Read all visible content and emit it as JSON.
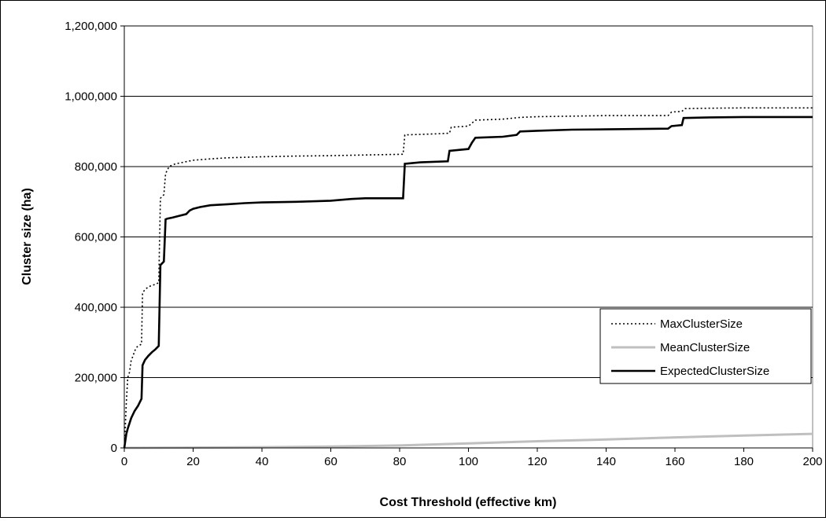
{
  "chart_data": {
    "type": "line",
    "title": "",
    "xlabel": "Cost Threshold (effective km)",
    "ylabel": "Cluster size (ha)",
    "xlim": [
      0,
      200
    ],
    "ylim": [
      0,
      1200000
    ],
    "x_ticks": [
      0,
      20,
      40,
      60,
      80,
      100,
      120,
      140,
      160,
      180,
      200
    ],
    "x_tick_labels": [
      "0",
      "20",
      "40",
      "60",
      "80",
      "100",
      "120",
      "140",
      "160",
      "180",
      "200"
    ],
    "y_ticks": [
      0,
      200000,
      400000,
      600000,
      800000,
      1000000,
      1200000
    ],
    "y_tick_labels": [
      "0",
      "200,000",
      "400,000",
      "600,000",
      "800,000",
      "1,000,000",
      "1,200,000"
    ],
    "grid": "horizontal",
    "legend_position": "right",
    "series": [
      {
        "name": "MaxClusterSize",
        "color": "#000000",
        "style": "dotted",
        "x": [
          0,
          0.3,
          0.6,
          1,
          1.5,
          2,
          2.5,
          3,
          3.5,
          4,
          5,
          5.3,
          5.6,
          6,
          7,
          8,
          9,
          10,
          10.5,
          11,
          11.5,
          12,
          12.5,
          13,
          14,
          15,
          17,
          20,
          25,
          30,
          40,
          50,
          60,
          70,
          81,
          81.5,
          90,
          94.5,
          95,
          100,
          102,
          110,
          115,
          120,
          140,
          158,
          159,
          162,
          163,
          170,
          180,
          200
        ],
        "y": [
          0,
          60000,
          130000,
          200000,
          215000,
          250000,
          260000,
          275000,
          285000,
          290000,
          295000,
          440000,
          445000,
          450000,
          458000,
          462000,
          465000,
          470000,
          710000,
          715000,
          720000,
          780000,
          790000,
          800000,
          805000,
          808000,
          812000,
          818000,
          822000,
          825000,
          828000,
          830000,
          831000,
          833000,
          835000,
          890000,
          893000,
          895000,
          912000,
          915000,
          932000,
          935000,
          940000,
          942000,
          945000,
          945000,
          955000,
          957000,
          965000,
          966000,
          967000,
          967000
        ]
      },
      {
        "name": "MeanClusterSize",
        "color": "#bfbfbf",
        "style": "solid",
        "x": [
          0,
          20,
          40,
          60,
          80,
          100,
          120,
          140,
          160,
          180,
          200
        ],
        "y": [
          0,
          1000,
          2000,
          4000,
          7000,
          13000,
          19000,
          24000,
          30000,
          35000,
          40000
        ]
      },
      {
        "name": "ExpectedClusterSize",
        "color": "#000000",
        "style": "solid",
        "x": [
          0,
          0.3,
          0.6,
          1,
          1.5,
          2,
          3,
          4,
          5,
          5.3,
          6,
          7,
          8,
          9,
          10,
          10.5,
          11,
          11.5,
          12,
          12.5,
          14,
          16,
          18,
          19,
          20,
          22,
          25,
          30,
          35,
          40,
          50,
          60,
          66,
          70,
          81,
          81.5,
          86,
          94,
          94.5,
          100,
          101,
          102,
          110,
          114,
          115,
          120,
          130,
          140,
          158,
          159,
          162,
          162.5,
          170,
          180,
          200
        ],
        "y": [
          0,
          20000,
          40000,
          55000,
          70000,
          85000,
          105000,
          120000,
          140000,
          235000,
          250000,
          262000,
          272000,
          280000,
          290000,
          520000,
          525000,
          530000,
          650000,
          652000,
          655000,
          660000,
          665000,
          675000,
          680000,
          685000,
          690000,
          693000,
          696000,
          698000,
          700000,
          703000,
          708000,
          710000,
          710000,
          808000,
          812000,
          815000,
          845000,
          850000,
          868000,
          882000,
          885000,
          890000,
          900000,
          902000,
          905000,
          906000,
          908000,
          915000,
          918000,
          938000,
          940000,
          941000,
          941000
        ]
      }
    ]
  }
}
